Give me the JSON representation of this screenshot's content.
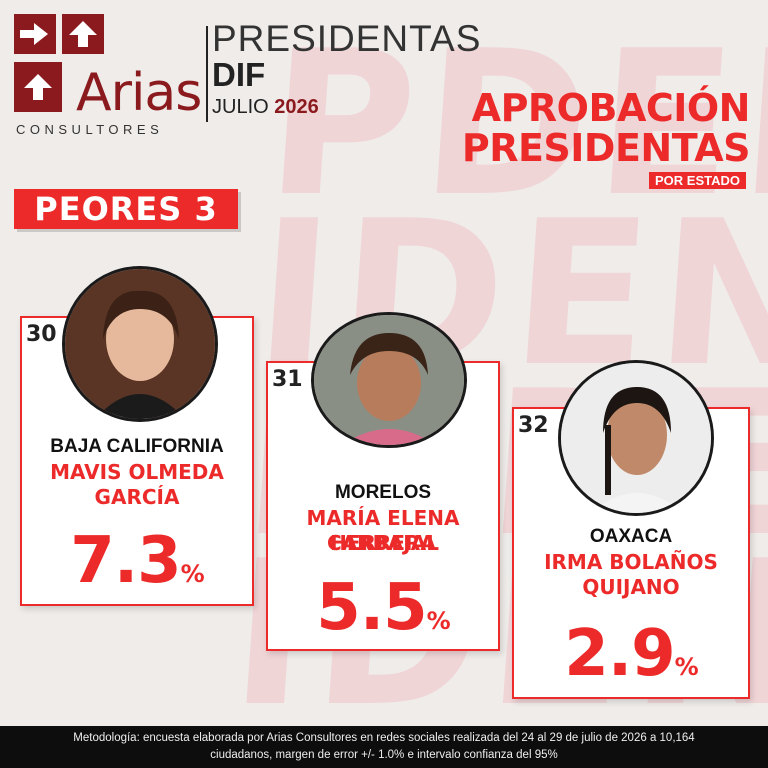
{
  "logo": {
    "name": "Arias",
    "sub": "CONSULTORES"
  },
  "header": {
    "title": "PRESIDENTAS",
    "dif": "DIF",
    "month": "JULIO",
    "year": "2026"
  },
  "approval": {
    "line1": "APROBACIÓN",
    "line2": "PRESIDENTAS",
    "sub": "POR ESTADO"
  },
  "badge": "PEORES 3",
  "cards": [
    {
      "rank": "30",
      "state": "BAJA CALIFORNIA",
      "name_line1": "MAVIS OLMEDA GARCÍA",
      "name_line2": "",
      "value": "7.3",
      "unit": "%"
    },
    {
      "rank": "31",
      "state": "MORELOS",
      "name_line1": "MARÍA ELENA HERRERA",
      "name_line2": "CARBAJAL",
      "value": "5.5",
      "unit": "%"
    },
    {
      "rank": "32",
      "state": "OAXACA",
      "name_line1": "IRMA BOLAÑOS",
      "name_line2": "QUIJANO",
      "value": "2.9",
      "unit": "%"
    }
  ],
  "footer": {
    "line1": "Metodología: encuesta elaborada por Arias Consultores en redes sociales realizada del 24 al 29 de julio de 2026 a 10,164",
    "line2": "ciudadanos, margen de error +/- 1.0% e intervalo confianza del 95%"
  },
  "colors": {
    "accent": "#ec2a2a",
    "brand": "#8b1a1e"
  }
}
